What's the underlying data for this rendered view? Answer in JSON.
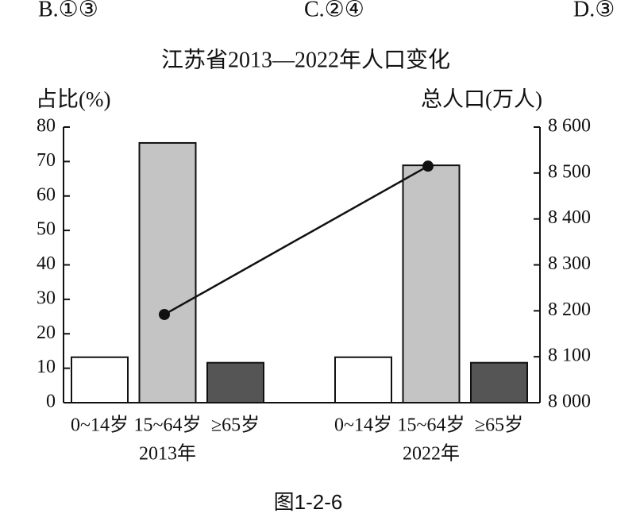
{
  "options": [
    "B.①③",
    "C.②④",
    "D.③"
  ],
  "caption": "图1-2-6",
  "chart_data": {
    "type": "bar",
    "title": "江苏省2013—2022年人口变化",
    "ylabel": "占比(%)",
    "y2label": "总人口(万人)",
    "categories": [
      "2013年",
      "2022年"
    ],
    "series": [
      {
        "name": "0~14岁",
        "color": "#ffffff",
        "values": [
          13.2,
          13.2
        ]
      },
      {
        "name": "15~64岁",
        "color": "#c4c4c4",
        "values": [
          75.4,
          68.9
        ]
      },
      {
        "name": "≥65岁",
        "color": "#555555",
        "values": [
          11.6,
          11.6
        ]
      }
    ],
    "line": {
      "axis": "y2",
      "color": "#111111",
      "values": [
        8192,
        8515
      ]
    },
    "ylim": [
      0,
      80
    ],
    "yticks": [
      0,
      10,
      20,
      30,
      40,
      50,
      60,
      70,
      80
    ],
    "y2lim": [
      8000,
      8600
    ],
    "y2ticks": [
      {
        "value": 8000,
        "label": "8 000"
      },
      {
        "value": 8100,
        "label": "8 100"
      },
      {
        "value": 8200,
        "label": "8 200"
      },
      {
        "value": 8300,
        "label": "8 300"
      },
      {
        "value": 8400,
        "label": "8 400"
      },
      {
        "value": 8500,
        "label": "8 500"
      },
      {
        "value": 8600,
        "label": "8 600"
      }
    ]
  }
}
